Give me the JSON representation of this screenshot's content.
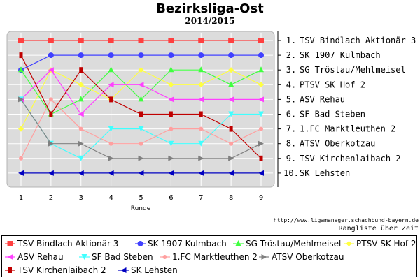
{
  "chart_data": {
    "type": "line",
    "title": "Bezirksliga-Ost",
    "subtitle": "2014/2015",
    "xlabel": "Runde",
    "x": [
      1,
      2,
      3,
      4,
      5,
      6,
      7,
      8,
      9
    ],
    "ylim": [
      1,
      10
    ],
    "y_inverted": true,
    "grid": true,
    "legend_position": "bottom",
    "rank_labels": [
      "1. TSV Bindlach Aktionär 3",
      "2. SK 1907 Kulmbach",
      "3. SG Tröstau/Mehlmeisel",
      "4. PTSV SK Hof 2",
      "5. ASV Rehau",
      "6. SF Bad Steben",
      "7. 1.FC Marktleuthen 2",
      "8. ATSV Oberkotzau",
      "9. TSV Kirchenlaibach 2",
      "10. SK Lehsten"
    ],
    "series": [
      {
        "name": "TSV Bindlach Aktionär 3",
        "color": "#ff4040",
        "marker": "square",
        "values": [
          1,
          1,
          1,
          1,
          1,
          1,
          1,
          1,
          1
        ]
      },
      {
        "name": "SK 1907 Kulmbach",
        "color": "#4040ff",
        "marker": "circle",
        "values": [
          3,
          2,
          2,
          2,
          2,
          2,
          2,
          2,
          2
        ]
      },
      {
        "name": "SG Tröstau/Mehlmeisel",
        "color": "#40ff40",
        "marker": "triangle-up",
        "values": [
          3,
          6,
          5,
          3,
          5,
          3,
          3,
          4,
          3
        ]
      },
      {
        "name": "PTSV SK Hof 2",
        "color": "#ffff40",
        "marker": "diamond",
        "values": [
          7,
          3,
          4,
          5,
          3,
          4,
          4,
          3,
          4
        ]
      },
      {
        "name": "ASV Rehau",
        "color": "#ff40ff",
        "marker": "tri-left",
        "values": [
          5,
          3,
          6,
          4,
          4,
          5,
          5,
          5,
          5
        ]
      },
      {
        "name": "SF Bad Steben",
        "color": "#40ffff",
        "marker": "triangle-down",
        "values": [
          5,
          8,
          9,
          7,
          7,
          8,
          8,
          6,
          6
        ]
      },
      {
        "name": "1.FC Marktleuthen 2",
        "color": "#ffa0a0",
        "marker": "circle-small",
        "values": [
          9,
          5,
          7,
          8,
          8,
          7,
          7,
          8,
          7
        ]
      },
      {
        "name": "ATSV Oberkotzau",
        "color": "#808080",
        "marker": "tri-right",
        "values": [
          5,
          8,
          8,
          9,
          9,
          9,
          9,
          9,
          8
        ]
      },
      {
        "name": "TSV Kirchenlaibach 2",
        "color": "#c00000",
        "marker": "rect",
        "values": [
          2,
          6,
          3,
          5,
          6,
          6,
          6,
          7,
          9
        ]
      },
      {
        "name": "SK Lehsten",
        "color": "#0000c0",
        "marker": "tri-left",
        "values": [
          10,
          10,
          10,
          10,
          10,
          10,
          10,
          10,
          10
        ]
      }
    ]
  },
  "footer": {
    "url": "http://www.ligamanager.schachbund-bayern.de",
    "note": "Rangliste über Zeit"
  }
}
